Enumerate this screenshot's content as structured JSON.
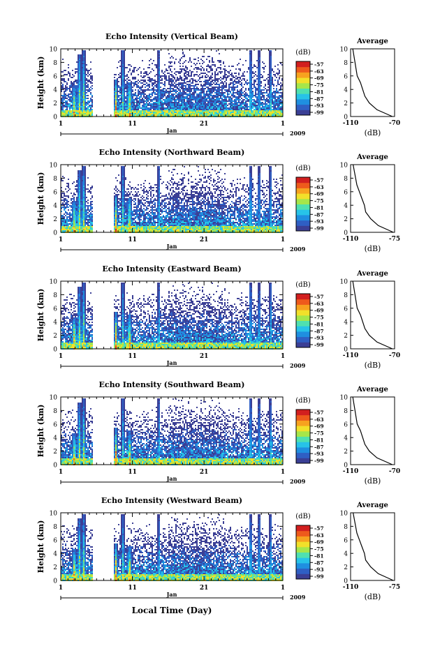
{
  "figure": {
    "xlabel": "Local Time (Day)",
    "year_label": "2009",
    "month_label": "Jan",
    "x_ticks": [
      "1",
      "11",
      "21",
      "1"
    ],
    "colorbar_unit": "(dB)",
    "colorbar_ticks": [
      "-57",
      "-63",
      "-69",
      "-75",
      "-81",
      "-87",
      "-93",
      "-99"
    ],
    "colorbar_colors": [
      "#3b3f95",
      "#2f5fc4",
      "#1f8fe0",
      "#27c3e8",
      "#4fe0b0",
      "#a6e64a",
      "#f2e02a",
      "#f7a21f",
      "#ee5a1c",
      "#d21f1f"
    ],
    "data_color_low": "#3b3f95",
    "ylabel": "Height (km)",
    "y_ticks": [
      "0",
      "2",
      "4",
      "6",
      "8",
      "10"
    ]
  },
  "chart_data": [
    {
      "type": "heatmap",
      "title": "Echo Intensity (Vertical Beam)",
      "ylabel": "Height (km)",
      "ylim": [
        0,
        10
      ],
      "x_range_days": [
        1,
        32
      ],
      "color_range_db": [
        -99,
        -57
      ],
      "heights_km": [
        0,
        1,
        2,
        3,
        4,
        5,
        6,
        7,
        8,
        9,
        10
      ],
      "avg_profile": {
        "title": "Average",
        "xlabel": "(dB)",
        "xlim": [
          -110,
          -70
        ],
        "x_ticks": [
          "-110",
          "-70"
        ],
        "avg_db": [
          -72,
          -86,
          -93,
          -97,
          -99,
          -101,
          -104,
          -105,
          -106,
          -107,
          -108
        ]
      }
    },
    {
      "type": "heatmap",
      "title": "Echo Intensity (Northward Beam)",
      "ylabel": "Height (km)",
      "ylim": [
        0,
        10
      ],
      "x_range_days": [
        1,
        32
      ],
      "color_range_db": [
        -99,
        -57
      ],
      "heights_km": [
        0,
        1,
        2,
        3,
        4,
        5,
        6,
        7,
        8,
        9,
        10
      ],
      "avg_profile": {
        "title": "Average",
        "xlabel": "(dB)",
        "xlim": [
          -110,
          -75
        ],
        "x_ticks": [
          "-110",
          "-75"
        ],
        "avg_db": [
          -76,
          -88,
          -94,
          -98,
          -99,
          -101,
          -103,
          -105,
          -106,
          -107,
          -108
        ]
      }
    },
    {
      "type": "heatmap",
      "title": "Echo Intensity (Eastward Beam)",
      "ylabel": "Height (km)",
      "ylim": [
        0,
        10
      ],
      "x_range_days": [
        1,
        32
      ],
      "color_range_db": [
        -99,
        -57
      ],
      "heights_km": [
        0,
        1,
        2,
        3,
        4,
        5,
        6,
        7,
        8,
        9,
        10
      ],
      "avg_profile": {
        "title": "Average",
        "xlabel": "(dB)",
        "xlim": [
          -110,
          -70
        ],
        "x_ticks": [
          "-110",
          "-70"
        ],
        "avg_db": [
          -72,
          -86,
          -93,
          -97,
          -99,
          -101,
          -104,
          -105,
          -106,
          -107,
          -108
        ]
      }
    },
    {
      "type": "heatmap",
      "title": "Echo Intensity (Southward Beam)",
      "ylabel": "Height (km)",
      "ylim": [
        0,
        10
      ],
      "x_range_days": [
        1,
        32
      ],
      "color_range_db": [
        -99,
        -57
      ],
      "heights_km": [
        0,
        1,
        2,
        3,
        4,
        5,
        6,
        7,
        8,
        9,
        10
      ],
      "avg_profile": {
        "title": "Average",
        "xlabel": "(dB)",
        "xlim": [
          -110,
          -70
        ],
        "x_ticks": [
          "-110",
          "-70"
        ],
        "avg_db": [
          -72,
          -86,
          -93,
          -97,
          -99,
          -101,
          -104,
          -105,
          -106,
          -107,
          -108
        ]
      }
    },
    {
      "type": "heatmap",
      "title": "Echo Intensity (Westward Beam)",
      "ylabel": "Height (km)",
      "ylim": [
        0,
        10
      ],
      "x_range_days": [
        1,
        32
      ],
      "color_range_db": [
        -99,
        -57
      ],
      "heights_km": [
        0,
        1,
        2,
        3,
        4,
        5,
        6,
        7,
        8,
        9,
        10
      ],
      "avg_profile": {
        "title": "Average",
        "xlabel": "(dB)",
        "xlim": [
          -110,
          -75
        ],
        "x_ticks": [
          "-110",
          "-75"
        ],
        "avg_db": [
          -76,
          -88,
          -94,
          -98,
          -99,
          -101,
          -103,
          -105,
          -106,
          -107,
          -108
        ]
      }
    }
  ]
}
